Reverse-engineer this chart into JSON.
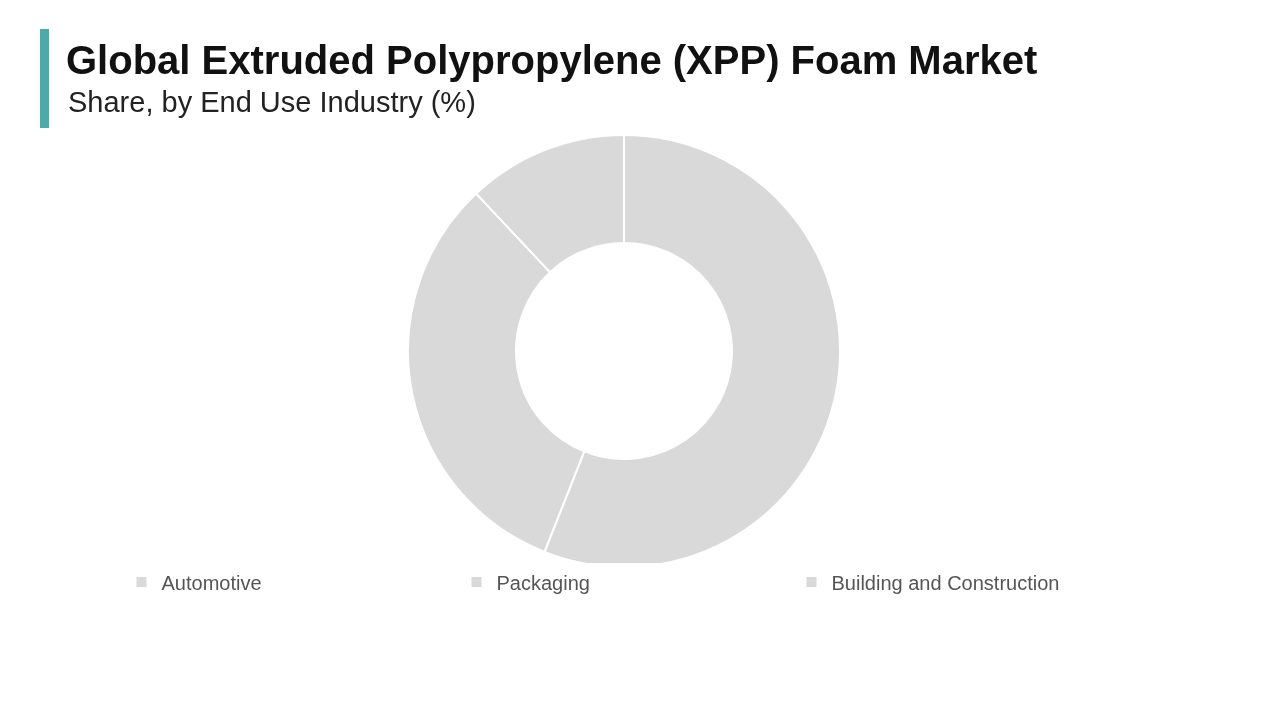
{
  "chart_data": {
    "type": "donut",
    "title": "Global Extruded Polypropylene (XPP) Foam Market",
    "subtitle": "Share, by End Use Industry (%)",
    "categories": [
      "Automotive",
      "Packaging",
      "Building and Construction"
    ],
    "values": [
      56,
      32,
      12
    ],
    "colors": [
      "#d9d9d9",
      "#d9d9d9",
      "#d9d9d9"
    ],
    "legend": "bottom"
  }
}
